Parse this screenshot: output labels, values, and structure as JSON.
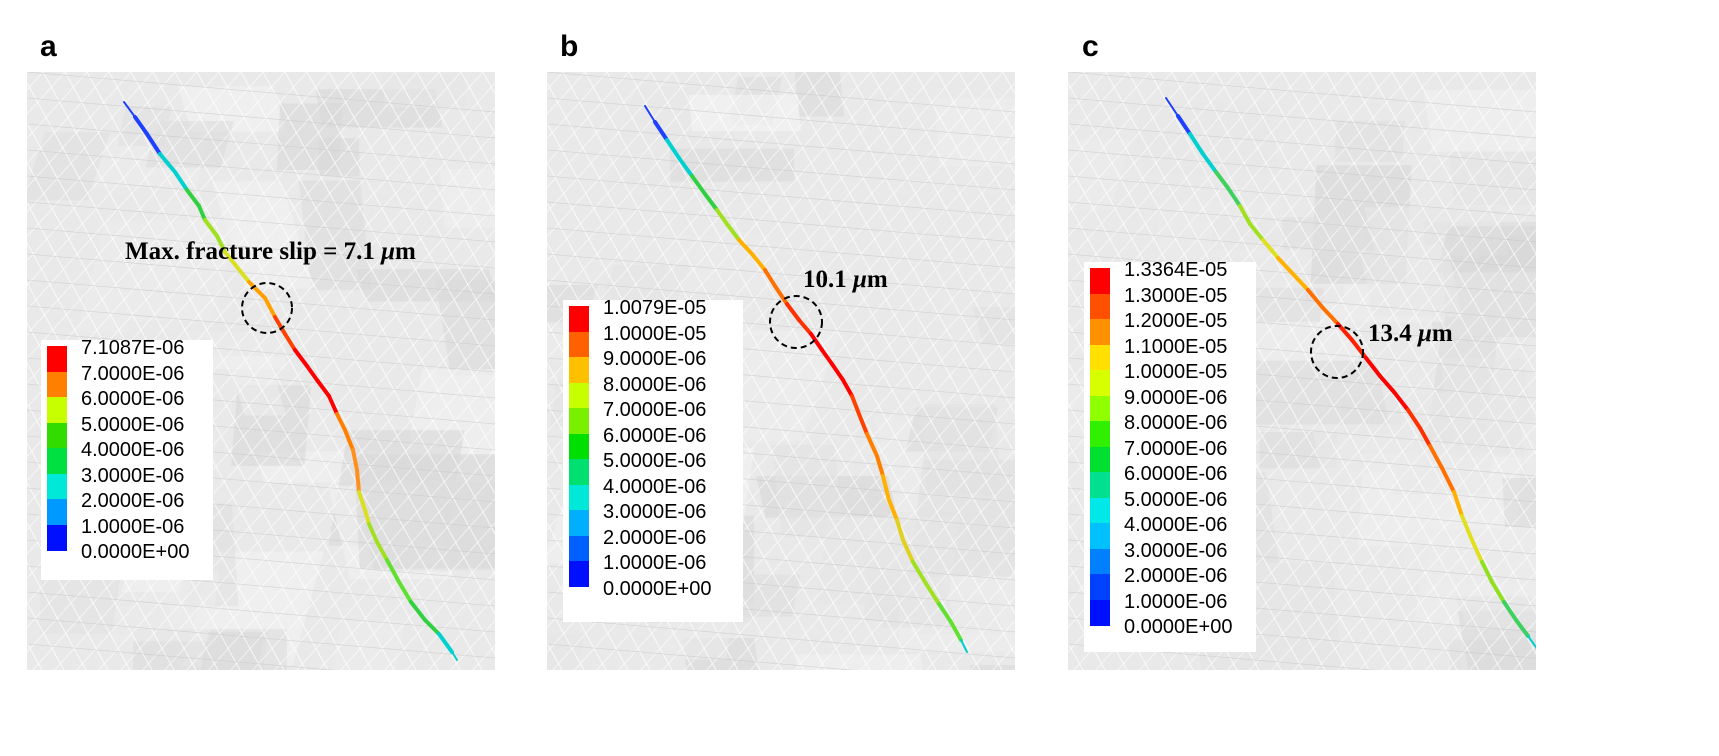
{
  "panels": [
    {
      "letter": "a",
      "annotation_prefix": "Max. fracture slip  = 7.1 ",
      "annotation_unit_mu": "μ",
      "annotation_unit_rest": "m",
      "legend": [
        "7.1087E-06",
        "7.0000E-06",
        "6.0000E-06",
        "5.0000E-06",
        "4.0000E-06",
        "3.0000E-06",
        "2.0000E-06",
        "1.0000E-06",
        "0.0000E+00"
      ],
      "legend_colors": [
        "#ff0000",
        "#ff8000",
        "#c8ff00",
        "#32dc00",
        "#00e040",
        "#00e8d8",
        "#0099ff",
        "#0010ff"
      ]
    },
    {
      "letter": "b",
      "annotation_prefix": "10.1 ",
      "annotation_unit_mu": "μ",
      "annotation_unit_rest": "m",
      "legend": [
        "1.0079E-05",
        "1.0000E-05",
        "9.0000E-06",
        "8.0000E-06",
        "7.0000E-06",
        "6.0000E-06",
        "5.0000E-06",
        "4.0000E-06",
        "3.0000E-06",
        "2.0000E-06",
        "1.0000E-06",
        "0.0000E+00"
      ],
      "legend_colors": [
        "#ff0000",
        "#ff6000",
        "#ffc000",
        "#c8ff00",
        "#78f000",
        "#00e000",
        "#00e070",
        "#00e8d8",
        "#00b0ff",
        "#0060ff",
        "#0010ff"
      ]
    },
    {
      "letter": "c",
      "annotation_prefix": "13.4 ",
      "annotation_unit_mu": "μ",
      "annotation_unit_rest": "m",
      "legend": [
        "1.3364E-05",
        "1.3000E-05",
        "1.2000E-05",
        "1.1000E-05",
        "1.0000E-05",
        "9.0000E-06",
        "8.0000E-06",
        "7.0000E-06",
        "6.0000E-06",
        "5.0000E-06",
        "4.0000E-06",
        "3.0000E-06",
        "2.0000E-06",
        "1.0000E-06",
        "0.0000E+00"
      ],
      "legend_colors": [
        "#ff0000",
        "#ff5000",
        "#ff9000",
        "#ffe000",
        "#d8ff00",
        "#90ff00",
        "#30f000",
        "#00e030",
        "#00e090",
        "#00e8e8",
        "#00c0ff",
        "#0080ff",
        "#0040ff",
        "#0010ff"
      ]
    }
  ]
}
